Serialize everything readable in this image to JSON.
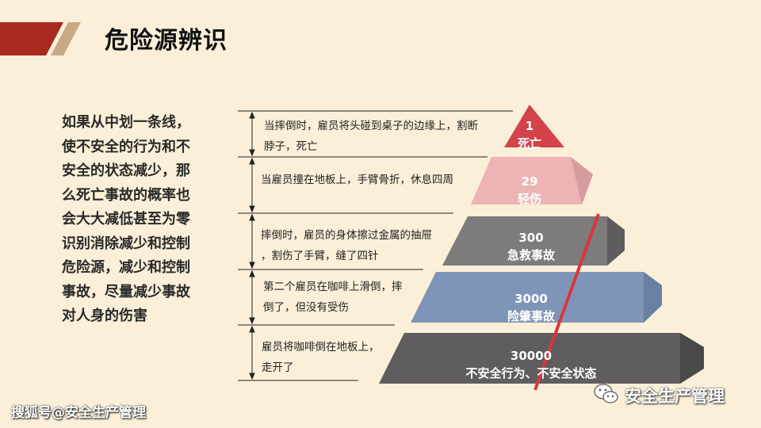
{
  "slide": {
    "title": "危险源辨识",
    "colors": {
      "background": "#fbefd9",
      "banner_red": "#a8291f",
      "banner_tan": "#c9a985"
    }
  },
  "description": {
    "lines": [
      "如果从中划一条线，",
      "使不安全的行为和不",
      "安全的状态减少，那",
      "么死亡事故的概率也",
      "会大大减低甚至为零",
      "识别消除减少和控制",
      "危险源，减少和控制",
      "事故，尽量减少事故",
      "对人身的伤害"
    ]
  },
  "cases": [
    {
      "lines": [
        "当摔倒时，雇员将头碰到桌子的边缘上，割断",
        "脖子，死亡"
      ]
    },
    {
      "lines": [
        "当雇员撞在地板上，手臂骨折，休息四周"
      ]
    },
    {
      "lines": [
        "摔倒时，雇员的身体擦过金属的抽屉",
        "，割伤了手臂，缝了四针"
      ]
    },
    {
      "lines": [
        "第二个雇员在咖啡上滑倒，摔",
        "倒了，但没有受伤"
      ]
    },
    {
      "lines": [
        "雇员将咖啡倒在地板上，",
        "走开了"
      ]
    }
  ],
  "pyramid": [
    {
      "count": "1",
      "label": "死亡",
      "color": "#d4424a"
    },
    {
      "count": "29",
      "label": "轻伤",
      "color": "#edb3b5"
    },
    {
      "count": "300",
      "label": "急救事故",
      "color": "#7d7b7c"
    },
    {
      "count": "3000",
      "label": "险肇事故",
      "color": "#7f95b7"
    },
    {
      "count": "30000",
      "label": "不安全行为、不安全状态",
      "color": "#5f5d5e"
    }
  ],
  "watermarks": {
    "left": "搜狐号@安全生产管理",
    "right": "安全生产管理",
    "right_icon": "wechat-icon"
  }
}
